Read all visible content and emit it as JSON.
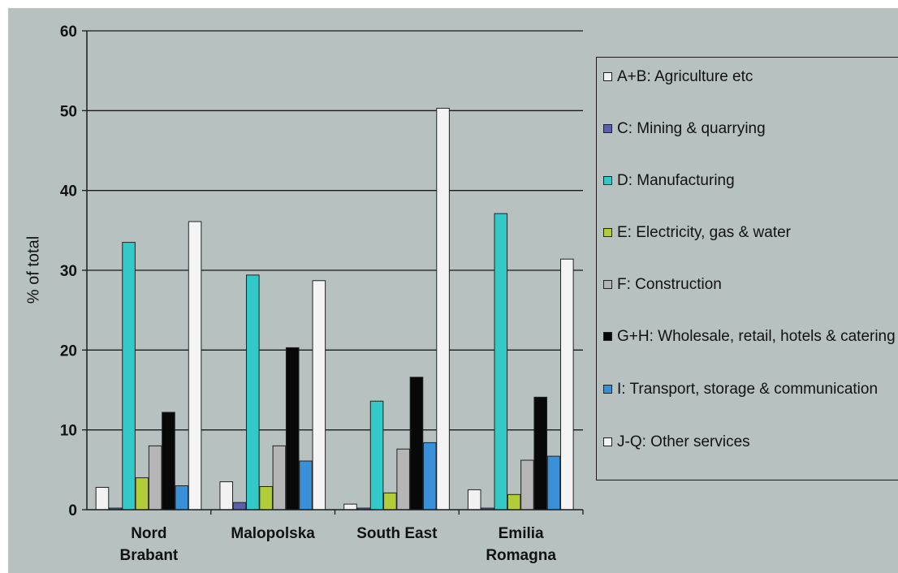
{
  "chart_data": {
    "type": "bar",
    "title": "",
    "ylabel": "% of total",
    "ylim": [
      0,
      60
    ],
    "yticks": [
      0,
      10,
      20,
      30,
      40,
      50,
      60
    ],
    "grid": true,
    "legend_position": "right",
    "categories": [
      "Nord\nBrabant",
      "Malopolska",
      "South East",
      "Emilia\nRomagna"
    ],
    "series": [
      {
        "name": "A+B: Agriculture etc",
        "color": "#f2f2f2",
        "values": [
          2.8,
          3.5,
          0.7,
          2.5
        ]
      },
      {
        "name": "C: Mining & quarrying",
        "color": "#5b5ea8",
        "values": [
          0.2,
          0.9,
          0.2,
          0.2
        ]
      },
      {
        "name": "D: Manufacturing",
        "color": "#33c9c9",
        "values": [
          33.5,
          29.4,
          13.6,
          37.1
        ]
      },
      {
        "name": "E: Electricity, gas & water",
        "color": "#b3cc3a",
        "values": [
          4.0,
          2.9,
          2.1,
          1.9
        ]
      },
      {
        "name": "F: Construction",
        "color": "#b5b5b5",
        "values": [
          8.0,
          8.0,
          7.6,
          6.2
        ]
      },
      {
        "name": "G+H: Wholesale, retail, hotels & catering",
        "color": "#080808",
        "values": [
          12.2,
          20.3,
          16.6,
          14.1
        ]
      },
      {
        "name": "I: Transport, storage & communication",
        "color": "#3a90d6",
        "values": [
          3.0,
          6.1,
          8.4,
          6.7
        ]
      },
      {
        "name": "J-Q: Other services",
        "color": "#f4f4f4",
        "values": [
          36.1,
          28.7,
          50.3,
          31.4
        ]
      }
    ]
  }
}
